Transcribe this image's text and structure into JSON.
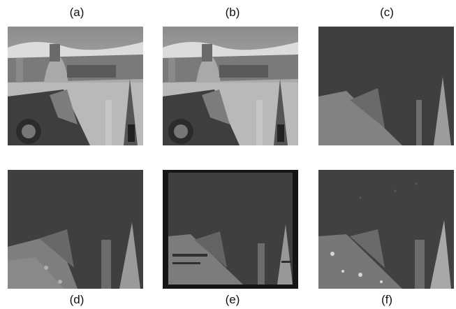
{
  "figure": {
    "labels": [
      "(a)",
      "(b)",
      "(c)",
      "(d)",
      "(e)",
      "(f)"
    ]
  },
  "colors": {
    "background": "#ffffff",
    "depth_dark": "#3b3b3b",
    "depth_mid": "#5e5e5e",
    "depth_light": "#8a8a8a",
    "depth_bright": "#b5b5b5"
  }
}
